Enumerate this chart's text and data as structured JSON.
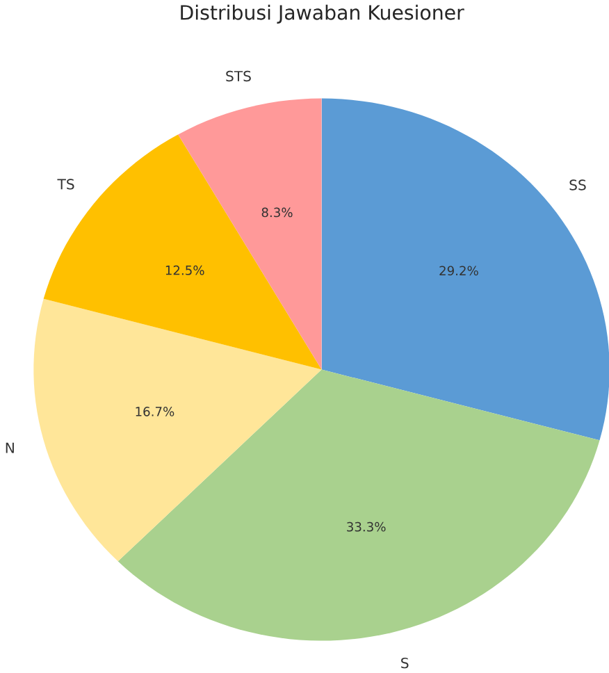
{
  "chart_data": {
    "type": "pie",
    "title": "Distribusi Jawaban Kuesioner",
    "categories": [
      "SS",
      "S",
      "N",
      "TS",
      "STS"
    ],
    "values": [
      29.2,
      33.3,
      16.7,
      12.5,
      8.3
    ],
    "colors": [
      "#5b9bd5",
      "#a9d18e",
      "#ffe699",
      "#ffc000",
      "#ff9999"
    ],
    "value_labels": [
      "29.2%",
      "33.3%",
      "16.7%",
      "12.5%",
      "8.3%"
    ]
  }
}
